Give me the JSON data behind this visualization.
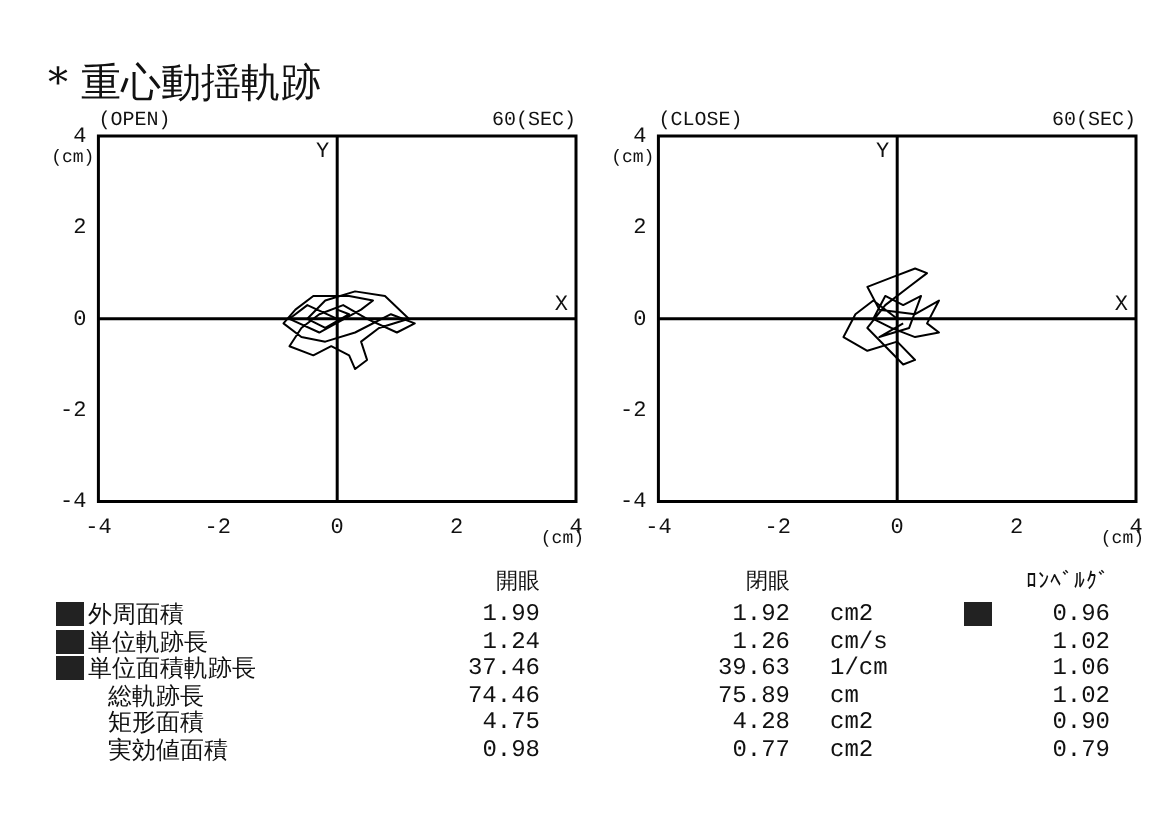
{
  "chart_data": [
    {
      "type": "line",
      "title": "* 重心動揺軌跡",
      "xlabel": "(cm)",
      "ylabel": "(cm)",
      "annotations": [
        "(OPEN)",
        "60(SEC)"
      ],
      "color": "#000000",
      "marker": "none",
      "grid": false,
      "xlim": [
        -4,
        4
      ],
      "ylim": [
        -4,
        4
      ],
      "xticks": [
        -4,
        -2,
        0,
        2,
        4
      ],
      "yticks": [
        -4,
        -2,
        0,
        2,
        4
      ],
      "ref_lines": [
        {
          "axis": "x",
          "value": 0,
          "label": "Y"
        },
        {
          "axis": "y",
          "value": 0,
          "label": "X"
        }
      ],
      "x": [
        0,
        -0.5,
        -0.8,
        -0.3,
        0.4,
        0.6,
        0.2,
        -0.4,
        -0.7,
        -0.9,
        -0.6,
        -0.2,
        0.3,
        0.9,
        1.3,
        1.0,
        0.5,
        0.1,
        -0.3,
        -0.6,
        -0.8,
        -0.4,
        -0.1,
        0.2,
        0.3,
        0.5,
        0.4,
        0.7,
        1.2,
        0.8,
        0.3,
        -0.2,
        -0.5,
        -0.2,
        0.2,
        0
      ],
      "values": [
        0,
        0.3,
        0,
        -0.3,
        0.2,
        0.4,
        0.5,
        0.5,
        0.2,
        -0.1,
        -0.4,
        -0.5,
        -0.3,
        0.1,
        -0.1,
        -0.3,
        0,
        0.3,
        0.1,
        -0.2,
        -0.6,
        -0.8,
        -0.6,
        -0.8,
        -1.1,
        -0.9,
        -0.5,
        -0.2,
        0,
        0.5,
        0.6,
        0.4,
        0,
        -0.2,
        0.1,
        0.2
      ]
    },
    {
      "type": "line",
      "xlabel": "(cm)",
      "ylabel": "(cm)",
      "annotations": [
        "(CLOSE)",
        "60(SEC)"
      ],
      "color": "#000000",
      "marker": "none",
      "grid": false,
      "xlim": [
        -4,
        4
      ],
      "ylim": [
        -4,
        4
      ],
      "xticks": [
        -4,
        -2,
        0,
        2,
        4
      ],
      "yticks": [
        -4,
        -2,
        0,
        2,
        4
      ],
      "ref_lines": [
        {
          "axis": "x",
          "value": 0,
          "label": "Y"
        },
        {
          "axis": "y",
          "value": 0,
          "label": "X"
        }
      ],
      "x": [
        0,
        -0.4,
        -0.7,
        -0.9,
        -0.5,
        0,
        0.3,
        0.1,
        -0.2,
        -0.5,
        -0.2,
        0.2,
        0.5,
        0.3,
        -0.1,
        -0.5,
        -0.3,
        0.3,
        0.7,
        0.5,
        0.7,
        0.3,
        -0.1,
        -0.4,
        -0.2,
        0.1,
        0.4,
        0.2,
        -0.3,
        0.1
      ],
      "values": [
        0,
        0.4,
        0.1,
        -0.4,
        -0.7,
        -0.5,
        -0.9,
        -1.0,
        -0.6,
        -0.2,
        0.3,
        0.7,
        1.0,
        1.1,
        0.9,
        0.7,
        0.2,
        0.1,
        0.4,
        -0.1,
        -0.3,
        -0.4,
        -0.2,
        0,
        0.5,
        0.3,
        0.5,
        -0.2,
        -0.4,
        -0.1
      ]
    },
    {
      "type": "other",
      "categories": [
        "外周面積",
        "単位軌跡長",
        "単位面積軌跡長",
        "総軌跡長",
        "矩形面積",
        "実効値面積"
      ],
      "data_labels": true,
      "series": [
        {
          "name": "開眼",
          "values": [
            1.99,
            1.24,
            37.46,
            74.46,
            4.75,
            0.98
          ]
        },
        {
          "name": "閉眼",
          "values": [
            1.92,
            1.26,
            39.63,
            75.89,
            4.28,
            0.77
          ]
        },
        {
          "name": "ﾛﾝﾍﾞﾙｸﾞ",
          "values": [
            0.96,
            1.02,
            1.06,
            1.02,
            0.9,
            0.79
          ],
          "value_labels": [
            "0.96",
            "1.02",
            "1.06",
            "1.02",
            "0.90",
            "0.79"
          ]
        }
      ],
      "annotations": [
        "cm2",
        "cm/s",
        "1/cm",
        "cm",
        "cm2",
        "cm2"
      ]
    }
  ]
}
